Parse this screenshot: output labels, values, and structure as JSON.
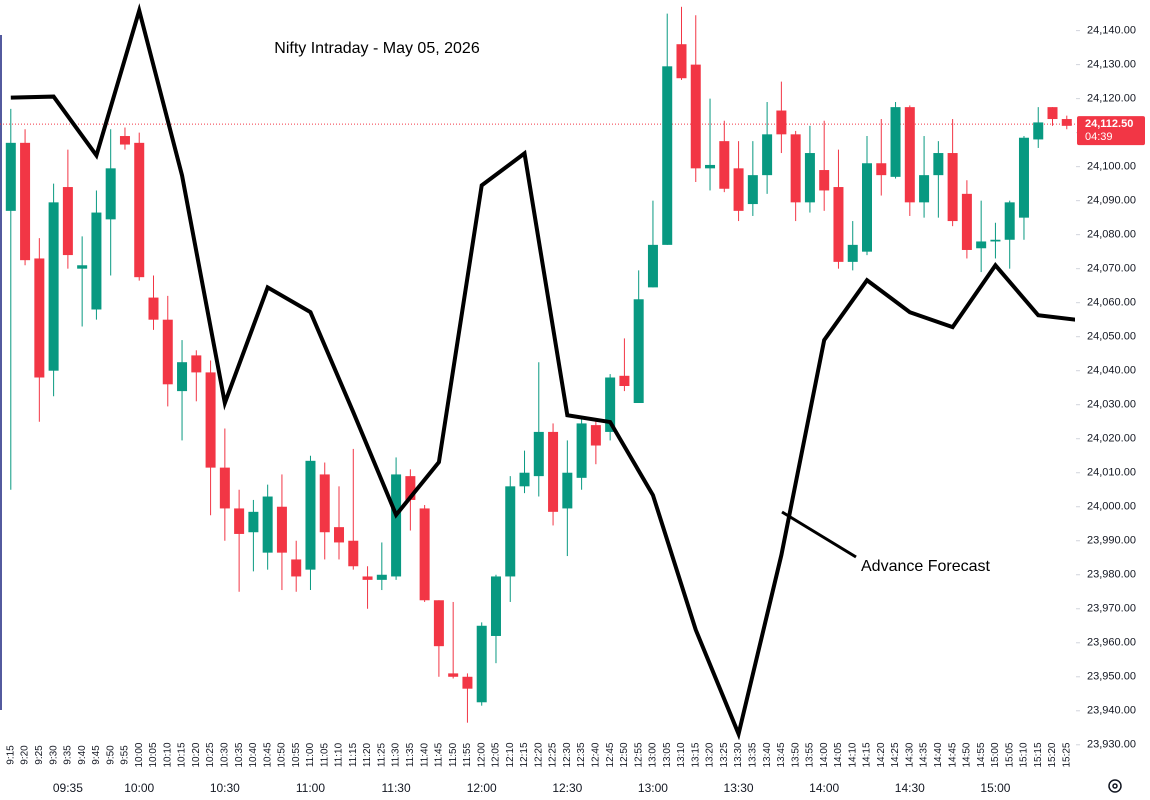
{
  "chart_data": {
    "type": "candlestick",
    "title": "Nifty Intraday - May 05, 2026",
    "categories": [
      "9:15",
      "9:20",
      "9:25",
      "9:30",
      "9:35",
      "9:40",
      "9:45",
      "9:50",
      "9:55",
      "10:00",
      "10:05",
      "10:10",
      "10:15",
      "10:20",
      "10:25",
      "10:30",
      "10:35",
      "10:40",
      "10:45",
      "10:50",
      "10:55",
      "11:00",
      "11:05",
      "11:10",
      "11:15",
      "11:20",
      "11:25",
      "11:30",
      "11:35",
      "11:40",
      "11:45",
      "11:50",
      "11:55",
      "12:00",
      "12:05",
      "12:10",
      "12:15",
      "12:20",
      "12:25",
      "12:30",
      "12:35",
      "12:40",
      "12:45",
      "12:50",
      "12:55",
      "13:00",
      "13:05",
      "13:10",
      "13:15",
      "13:20",
      "13:25",
      "13:30",
      "13:35",
      "13:40",
      "13:45",
      "13:50",
      "13:55",
      "14:00",
      "14:05",
      "14:10",
      "14:15",
      "14:20",
      "14:25",
      "14:30",
      "14:35",
      "14:40",
      "14:45",
      "14:50",
      "14:55",
      "15:00",
      "15:05",
      "15:10",
      "15:15",
      "15:20",
      "15:25"
    ],
    "open": [
      24087,
      24107,
      24073,
      24040,
      24094,
      24070,
      24058,
      24084.5,
      24109,
      24107,
      24061.5,
      24055,
      24034,
      24044.5,
      24039.5,
      24011.5,
      23999.5,
      23992.5,
      23986.5,
      24000,
      23984.5,
      23981.5,
      24009.5,
      23994,
      23990,
      23979.5,
      23978.5,
      23979.5,
      24009,
      23999.5,
      23972.5,
      23951,
      23950,
      23942.5,
      23962,
      23979.5,
      24006,
      24009,
      24022,
      23999.5,
      24008.5,
      24024,
      24022,
      24038.5,
      24030.5,
      24064.5,
      24077,
      24136,
      24130,
      24099.5,
      24107.5,
      24099.5,
      24089,
      24097.5,
      24116.5,
      24109.5,
      24089.5,
      24099,
      24094,
      24072,
      24075,
      24101,
      24097,
      24117.5,
      24089.5,
      24097.5,
      24104,
      24092,
      24076,
      24078,
      24078.5,
      24085,
      24108,
      24117.5,
      24114
    ],
    "high": [
      24117,
      24111,
      24079,
      24095,
      24105,
      24079.5,
      24093,
      24111,
      24111.5,
      24110,
      24068,
      24062,
      24049,
      24046,
      24043,
      24023,
      24005,
      24002,
      24006.5,
      24009.5,
      23990,
      24015,
      24013,
      24006,
      24017,
      23982.5,
      23989.5,
      24014.5,
      24011,
      24000.5,
      23972.5,
      23972,
      23951,
      23966,
      23980,
      24009,
      24016.5,
      24042.5,
      24024.5,
      24019.5,
      24026,
      24026,
      24039,
      24049.5,
      24069.5,
      24090,
      24145,
      24147,
      24144.5,
      24120,
      24113.5,
      24107.5,
      24107.5,
      24119,
      24125,
      24110.5,
      24112,
      24113.5,
      24105,
      24084,
      24109,
      24114,
      24119,
      24118,
      24109,
      24107.5,
      24114,
      24096,
      24090,
      24083.5,
      24090,
      24109,
      24117.5,
      24117.5,
      24115
    ],
    "low": [
      24005,
      24071,
      24025,
      24032.5,
      24070,
      24053,
      24055,
      24068,
      24105,
      24066.5,
      24052,
      24029.5,
      24019.5,
      24031,
      23997.5,
      23990,
      23975,
      23981,
      23981.5,
      23975.5,
      23975,
      23975.5,
      23984.5,
      23984.5,
      23981.5,
      23970,
      23975.5,
      23978.5,
      23993,
      23972,
      23950,
      23949.5,
      23936.5,
      23941.5,
      23954,
      23972,
      24004,
      24003,
      23994.5,
      23985.5,
      24005,
      24012.5,
      24019.5,
      24034,
      24030.5,
      24064.5,
      24077,
      24125.5,
      24095.5,
      24093,
      24092.5,
      24084,
      24085.5,
      24092,
      24104,
      24084,
      24086.5,
      24087,
      24070,
      24069.5,
      24074,
      24091.5,
      24096.5,
      24085.5,
      24085,
      24085,
      24082.5,
      24073,
      24069,
      24073,
      24070,
      24078.5,
      24105.5,
      24112,
      24111
    ],
    "close": [
      24107,
      24072.5,
      24038,
      24089.5,
      24074,
      24071,
      24086.5,
      24099.5,
      24106.5,
      24067.5,
      24055,
      24036,
      24042.5,
      24039.5,
      24011.5,
      23999.5,
      23992,
      23998.5,
      24003,
      23986.5,
      23979.5,
      24013.5,
      23992.5,
      23989.5,
      23982.5,
      23978.5,
      23980,
      24009.5,
      24002,
      23972.5,
      23959,
      23950,
      23946.5,
      23965,
      23979.5,
      24006,
      24010,
      24022,
      23998.5,
      24010,
      24024.5,
      24018,
      24038,
      24035.5,
      24061,
      24077,
      24129.5,
      24126,
      24099.5,
      24100.5,
      24093.5,
      24087,
      24097.5,
      24109.5,
      24109.5,
      24089.5,
      24104,
      24093,
      24072,
      24077,
      24101,
      24097.5,
      24117.5,
      24089.5,
      24097.5,
      24104,
      24084,
      24075.5,
      24078,
      24078.5,
      24089.5,
      24108.5,
      24113,
      24114,
      24112
    ],
    "up_color": "#089981",
    "down_color": "#f23645",
    "forecast": {
      "x": [
        "9:15",
        "9:30",
        "9:45",
        "10:00",
        "10:15",
        "10:30",
        "10:45",
        "11:00",
        "11:15",
        "11:30",
        "11:45",
        "12:00",
        "12:15",
        "12:30",
        "12:45",
        "13:00",
        "13:15",
        "13:30",
        "13:45",
        "14:00",
        "14:15",
        "14:30",
        "14:45",
        "15:00",
        "15:15",
        "15:30"
      ],
      "values": [
        24120.3,
        24120.6,
        24103.3,
        24145.9,
        24097.4,
        24030.5,
        24064.5,
        24057.2,
        24027.8,
        23997.6,
        24013.1,
        24094.5,
        24103.9,
        24026.9,
        24024.9,
        24003.4,
        23963.8,
        23933.2,
        23985.8,
        24049,
        24066.6,
        24057.2,
        24052.8,
        24071,
        24056.3,
        24054.8
      ],
      "color": "#000000"
    },
    "annotation": "Advance Forecast",
    "last_price": {
      "value": 24112.5,
      "label": "24,112.50"
    },
    "countdown": "04:39",
    "major_x_labels": [
      "09:35",
      "10:00",
      "10:30",
      "11:00",
      "11:30",
      "12:00",
      "12:30",
      "13:00",
      "13:30",
      "14:00",
      "14:30",
      "15:00"
    ],
    "ylim": [
      23927,
      24149
    ],
    "yticks": [
      {
        "value": 23930,
        "label": "23,930.00"
      },
      {
        "value": 23940,
        "label": "23,940.00"
      },
      {
        "value": 23950,
        "label": "23,950.00"
      },
      {
        "value": 23960,
        "label": "23,960.00"
      },
      {
        "value": 23970,
        "label": "23,970.00"
      },
      {
        "value": 23980,
        "label": "23,980.00"
      },
      {
        "value": 23990,
        "label": "23,990.00"
      },
      {
        "value": 24000,
        "label": "24,000.00"
      },
      {
        "value": 24010,
        "label": "24,010.00"
      },
      {
        "value": 24020,
        "label": "24,020.00"
      },
      {
        "value": 24030,
        "label": "24,030.00"
      },
      {
        "value": 24040,
        "label": "24,040.00"
      },
      {
        "value": 24050,
        "label": "24,050.00"
      },
      {
        "value": 24060,
        "label": "24,060.00"
      },
      {
        "value": 24070,
        "label": "24,070.00"
      },
      {
        "value": 24080,
        "label": "24,080.00"
      },
      {
        "value": 24090,
        "label": "24,090.00"
      },
      {
        "value": 24100,
        "label": "24,100.00"
      },
      {
        "value": 24110,
        "label": "24,110.00"
      },
      {
        "value": 24120,
        "label": "24,120.00"
      },
      {
        "value": 24130,
        "label": "24,130.00"
      },
      {
        "value": 24140,
        "label": "24,140.00"
      }
    ]
  }
}
